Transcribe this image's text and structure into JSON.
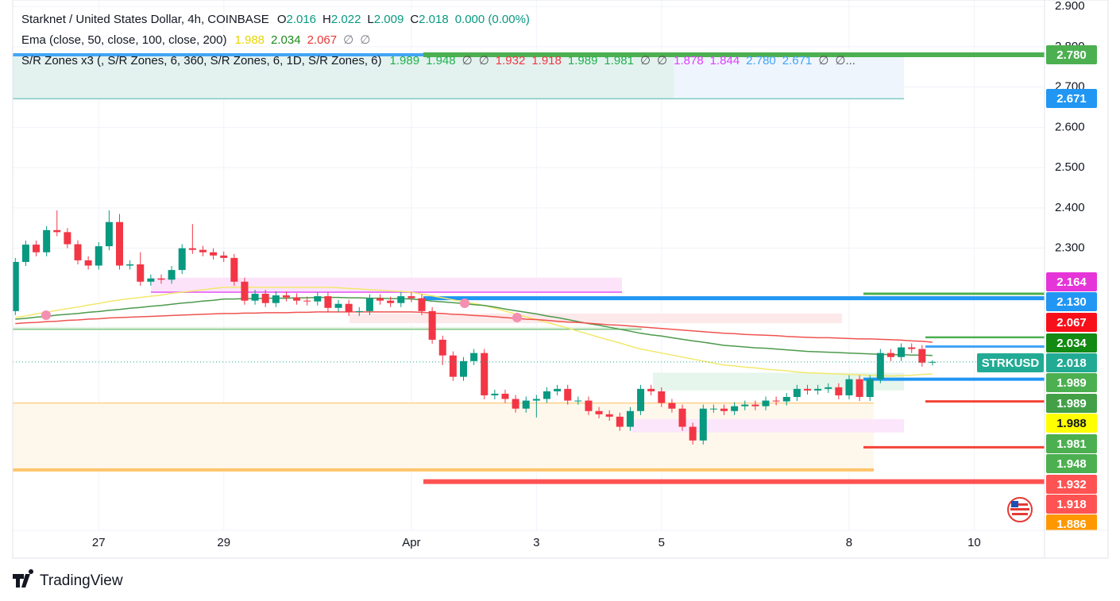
{
  "chart_data": {
    "type": "candlestick",
    "title": "Starknet / United States Dollar, 4h, COINBASE",
    "legend_ohlc": [
      {
        "name": "O",
        "value": 2.016
      },
      {
        "name": "H",
        "value": 2.022
      },
      {
        "name": "L",
        "value": 2.009
      },
      {
        "name": "C",
        "value": 2.018
      }
    ],
    "change": "0.000 (0.00%)",
    "symbol": "STRKUSD",
    "up_color": "#089981",
    "down_color": "#f23645",
    "grid": true,
    "ylim": [
      1.6,
      2.916
    ],
    "yticks": [
      {
        "value": 2.9,
        "label": "2.900"
      },
      {
        "value": 2.8,
        "label": "2.800"
      },
      {
        "value": 2.7,
        "label": "2.700"
      },
      {
        "value": 2.6,
        "label": "2.600"
      },
      {
        "value": 2.5,
        "label": "2.500"
      },
      {
        "value": 2.4,
        "label": "2.400"
      },
      {
        "value": 2.3,
        "label": "2.300"
      }
    ],
    "categories": [
      null,
      null,
      null,
      null,
      null,
      null,
      null,
      null,
      "27",
      null,
      null,
      null,
      null,
      null,
      null,
      null,
      null,
      null,
      null,
      null,
      "29",
      null,
      null,
      null,
      null,
      null,
      null,
      null,
      null,
      null,
      null,
      null,
      null,
      null,
      null,
      null,
      null,
      null,
      "Apr",
      null,
      null,
      null,
      null,
      null,
      null,
      null,
      null,
      null,
      null,
      null,
      "3",
      null,
      null,
      null,
      null,
      null,
      null,
      null,
      null,
      null,
      null,
      null,
      "5",
      null,
      null,
      null,
      null,
      null,
      null,
      null,
      null,
      null,
      null,
      null,
      null,
      null,
      null,
      null,
      null,
      null,
      "8",
      null,
      null,
      null,
      null,
      null,
      null,
      null,
      null,
      null,
      null,
      null,
      "10",
      null,
      null,
      null,
      null,
      null,
      null
    ],
    "open": [
      2.144,
      2.266,
      2.309,
      2.29,
      2.345,
      2.34,
      2.31,
      2.27,
      2.257,
      2.305,
      2.365,
      2.257,
      2.26,
      2.217,
      2.225,
      2.222,
      2.246,
      2.3,
      2.296,
      2.29,
      2.282,
      2.276,
      2.217,
      2.17,
      2.187,
      2.164,
      2.183,
      2.178,
      2.17,
      2.168,
      2.181,
      2.152,
      2.162,
      2.142,
      2.144,
      2.176,
      2.17,
      2.164,
      2.181,
      2.176,
      2.144,
      2.073,
      2.034,
      1.981,
      2.02,
      2.04,
      1.935,
      1.939,
      1.926,
      1.902,
      1.922,
      1.926,
      1.945,
      1.951,
      1.922,
      1.922,
      1.896,
      1.888,
      1.882,
      1.857,
      1.896,
      1.951,
      1.945,
      1.916,
      1.902,
      1.857,
      1.823,
      1.902,
      1.902,
      1.896,
      1.908,
      1.912,
      1.908,
      1.922,
      1.92,
      1.931,
      1.951,
      1.947,
      1.951,
      1.955,
      1.935,
      1.975,
      1.931,
      1.975,
      2.04,
      2.03,
      2.054,
      2.05,
      2.016,
      null,
      null,
      null,
      null,
      null,
      null,
      null,
      null,
      null,
      null
    ],
    "high": [
      2.276,
      2.319,
      2.319,
      2.355,
      2.394,
      2.35,
      2.32,
      2.28,
      2.315,
      2.394,
      2.385,
      2.27,
      2.29,
      2.235,
      2.235,
      2.256,
      2.31,
      2.36,
      2.306,
      2.3,
      2.292,
      2.286,
      2.227,
      2.197,
      2.197,
      2.193,
      2.193,
      2.188,
      2.18,
      2.191,
      2.191,
      2.172,
      2.172,
      2.154,
      2.186,
      2.186,
      2.18,
      2.191,
      2.191,
      2.186,
      2.154,
      2.083,
      2.044,
      2.03,
      2.05,
      2.05,
      1.949,
      1.949,
      1.936,
      1.932,
      1.936,
      1.955,
      1.961,
      1.961,
      1.932,
      1.932,
      1.906,
      1.898,
      1.892,
      1.906,
      1.961,
      1.961,
      1.955,
      1.926,
      1.912,
      1.867,
      1.912,
      1.912,
      1.912,
      1.918,
      1.922,
      1.922,
      1.932,
      1.932,
      1.941,
      1.961,
      1.961,
      1.961,
      1.965,
      1.965,
      1.985,
      1.985,
      1.985,
      2.05,
      2.05,
      2.064,
      2.064,
      2.06,
      2.022,
      null,
      null,
      null,
      null,
      null,
      null,
      null,
      null,
      null,
      null
    ],
    "low": [
      2.134,
      2.256,
      2.28,
      2.28,
      2.33,
      2.3,
      2.26,
      2.247,
      2.247,
      2.295,
      2.247,
      2.247,
      2.207,
      2.207,
      2.212,
      2.212,
      2.236,
      2.286,
      2.28,
      2.272,
      2.266,
      2.207,
      2.16,
      2.16,
      2.154,
      2.154,
      2.168,
      2.16,
      2.158,
      2.158,
      2.142,
      2.142,
      2.132,
      2.132,
      2.134,
      2.16,
      2.154,
      2.154,
      2.166,
      2.134,
      2.063,
      2.01,
      1.971,
      1.971,
      2.01,
      1.925,
      1.925,
      1.916,
      1.892,
      1.892,
      1.88,
      1.916,
      1.935,
      1.912,
      1.912,
      1.886,
      1.878,
      1.872,
      1.847,
      1.847,
      1.886,
      1.935,
      1.906,
      1.892,
      1.847,
      1.813,
      1.813,
      1.892,
      1.886,
      1.886,
      1.898,
      1.898,
      1.898,
      1.91,
      1.91,
      1.921,
      1.937,
      1.937,
      1.941,
      1.925,
      1.925,
      1.921,
      1.921,
      1.965,
      2.02,
      2.02,
      2.04,
      2.006,
      2.009,
      null,
      null,
      null,
      null,
      null,
      null,
      null,
      null,
      null,
      null
    ],
    "close": [
      2.266,
      2.309,
      2.29,
      2.345,
      2.34,
      2.31,
      2.27,
      2.257,
      2.305,
      2.365,
      2.257,
      2.26,
      2.217,
      2.225,
      2.222,
      2.246,
      2.3,
      2.296,
      2.29,
      2.282,
      2.276,
      2.217,
      2.17,
      2.187,
      2.164,
      2.183,
      2.178,
      2.17,
      2.168,
      2.181,
      2.152,
      2.162,
      2.142,
      2.144,
      2.176,
      2.17,
      2.164,
      2.181,
      2.176,
      2.144,
      2.073,
      2.034,
      1.981,
      2.02,
      2.04,
      1.935,
      1.939,
      1.926,
      1.902,
      1.922,
      1.926,
      1.945,
      1.951,
      1.922,
      1.922,
      1.896,
      1.888,
      1.882,
      1.857,
      1.896,
      1.951,
      1.945,
      1.916,
      1.902,
      1.857,
      1.823,
      1.902,
      1.902,
      1.896,
      1.908,
      1.912,
      1.908,
      1.922,
      1.92,
      1.931,
      1.951,
      1.947,
      1.951,
      1.955,
      1.935,
      1.975,
      1.931,
      1.975,
      2.04,
      2.03,
      2.054,
      2.05,
      2.016,
      2.018,
      null,
      null,
      null,
      null,
      null,
      null,
      null,
      null,
      null,
      null
    ],
    "ema": {
      "name": "Ema (close, 50, close, 100, close, 200)",
      "legend_values": [
        1.988,
        2.034,
        2.067,
        null,
        null
      ],
      "legend_labels": [
        "1.988",
        "2.034",
        "2.067",
        "∅",
        "∅"
      ],
      "legend_colors": [
        "#e8d500",
        "#1b8a1b",
        "#e53935",
        "#787b86",
        "#787b86"
      ],
      "series": [
        {
          "color": "#f2e86d",
          "values": [
            2.128,
            2.132,
            2.137,
            2.141,
            2.146,
            2.15,
            2.154,
            2.159,
            2.163,
            2.168,
            2.172,
            2.175,
            2.178,
            2.181,
            2.184,
            2.188,
            2.191,
            2.194,
            2.197,
            2.2,
            2.203,
            2.203,
            2.203,
            2.203,
            2.203,
            2.203,
            2.203,
            2.203,
            2.203,
            2.203,
            2.203,
            2.202,
            2.2,
            2.199,
            2.197,
            2.196,
            2.194,
            2.193,
            2.191,
            2.186,
            2.182,
            2.177,
            2.172,
            2.167,
            2.163,
            2.158,
            2.151,
            2.144,
            2.137,
            2.13,
            2.123,
            2.116,
            2.109,
            2.102,
            2.094,
            2.087,
            2.079,
            2.072,
            2.065,
            2.057,
            2.05,
            2.045,
            2.04,
            2.035,
            2.03,
            2.025,
            2.02,
            2.015,
            2.01,
            2.008,
            2.005,
            2.003,
            2.0,
            1.998,
            1.996,
            1.993,
            1.991,
            1.99,
            1.989,
            1.988,
            1.987,
            1.986,
            1.985,
            1.984,
            1.983,
            1.984,
            1.985,
            1.987,
            1.988,
            null,
            null,
            null,
            null,
            null,
            null,
            null,
            null,
            null,
            null
          ]
        },
        {
          "color": "#4c9a4c",
          "values": [
            2.124,
            2.126,
            2.129,
            2.131,
            2.134,
            2.136,
            2.138,
            2.141,
            2.143,
            2.146,
            2.148,
            2.151,
            2.153,
            2.156,
            2.158,
            2.161,
            2.164,
            2.166,
            2.169,
            2.171,
            2.174,
            2.174,
            2.175,
            2.175,
            2.176,
            2.176,
            2.176,
            2.177,
            2.177,
            2.178,
            2.178,
            2.178,
            2.177,
            2.177,
            2.176,
            2.176,
            2.175,
            2.175,
            2.174,
            2.172,
            2.169,
            2.167,
            2.165,
            2.163,
            2.16,
            2.158,
            2.154,
            2.149,
            2.145,
            2.141,
            2.137,
            2.132,
            2.128,
            2.123,
            2.118,
            2.113,
            2.109,
            2.104,
            2.099,
            2.094,
            2.089,
            2.085,
            2.082,
            2.078,
            2.074,
            2.07,
            2.067,
            2.063,
            2.059,
            2.057,
            2.055,
            2.053,
            2.052,
            2.05,
            2.048,
            2.046,
            2.044,
            2.043,
            2.042,
            2.041,
            2.04,
            2.039,
            2.038,
            2.037,
            2.036,
            2.036,
            2.035,
            2.035,
            2.034,
            null,
            null,
            null,
            null,
            null,
            null,
            null,
            null,
            null,
            null
          ]
        },
        {
          "color": "#ef5350",
          "values": [
            2.113,
            2.115,
            2.116,
            2.118,
            2.119,
            2.121,
            2.122,
            2.124,
            2.125,
            2.127,
            2.128,
            2.129,
            2.13,
            2.131,
            2.132,
            2.133,
            2.134,
            2.135,
            2.136,
            2.137,
            2.138,
            2.138,
            2.139,
            2.139,
            2.14,
            2.14,
            2.14,
            2.141,
            2.141,
            2.142,
            2.142,
            2.142,
            2.142,
            2.142,
            2.142,
            2.142,
            2.142,
            2.142,
            2.142,
            2.141,
            2.139,
            2.138,
            2.136,
            2.135,
            2.133,
            2.132,
            2.13,
            2.128,
            2.126,
            2.124,
            2.123,
            2.121,
            2.119,
            2.117,
            2.116,
            2.114,
            2.112,
            2.11,
            2.109,
            2.107,
            2.105,
            2.103,
            2.101,
            2.099,
            2.097,
            2.095,
            2.093,
            2.091,
            2.089,
            2.088,
            2.086,
            2.085,
            2.084,
            2.083,
            2.081,
            2.08,
            2.079,
            2.078,
            2.078,
            2.077,
            2.076,
            2.075,
            2.075,
            2.074,
            2.073,
            2.072,
            2.07,
            2.069,
            2.067,
            null,
            null,
            null,
            null,
            null,
            null,
            null,
            null,
            null,
            null
          ]
        }
      ]
    },
    "sr_zones": {
      "name": "S/R Zones x3 (, S/R Zones, 6, 360, S/R Zones, 6, 1D, S/R Zones, 6)",
      "legend_values": [
        1.989,
        1.948,
        null,
        null,
        1.932,
        1.918,
        1.989,
        1.981,
        null,
        null,
        1.878,
        1.844,
        2.78,
        2.671,
        null,
        null
      ],
      "legend_labels": [
        "1.989",
        "1.948",
        "∅",
        "∅",
        "1.932",
        "1.918",
        "1.989",
        "1.981",
        "∅",
        "∅",
        "1.878",
        "1.844",
        "2.780",
        "2.671",
        "∅",
        "∅..."
      ],
      "legend_colors": [
        "#22b14c",
        "#22b14c",
        "#555555",
        "#555555",
        "#f23645",
        "#f23645",
        "#22b14c",
        "#22b14c",
        "#555555",
        "#555555",
        "#e040fb",
        "#e040fb",
        "#42a5f5",
        "#42a5f5",
        "#555555",
        "#555555"
      ],
      "zones": [
        {
          "top": 2.78,
          "bottom": 2.671,
          "color": "#e3f2ef"
        },
        {
          "top": 2.78,
          "bottom": 2.671,
          "color": "#eef5fd"
        },
        {
          "top": 2.227,
          "bottom": 2.191,
          "color": "#fce3fa"
        },
        {
          "top": 2.138,
          "bottom": 2.114,
          "color": "#fde9ea"
        },
        {
          "top": 2.105,
          "bottom": 2.099,
          "color": "#e6f4e8"
        },
        {
          "top": 1.916,
          "bottom": 1.75,
          "color": "#fef8ec"
        },
        {
          "top": 1.991,
          "bottom": 1.947,
          "color": "#e6f6ec"
        },
        {
          "top": 1.876,
          "bottom": 1.843,
          "color": "#fce6fb"
        }
      ],
      "levels": [
        {
          "value": 2.78,
          "color": "#42a5f5"
        },
        {
          "value": 2.78,
          "color": "#4caf50"
        },
        {
          "value": 2.671,
          "color": "#80cbc4"
        },
        {
          "value": 2.176,
          "color": "#2196f3"
        },
        {
          "value": 2.187,
          "color": "#4caf50"
        },
        {
          "value": 2.079,
          "color": "#4caf50"
        },
        {
          "value": 2.056,
          "color": "#42a5f5"
        },
        {
          "value": 1.975,
          "color": "#2196f3"
        },
        {
          "value": 1.92,
          "color": "#f44336"
        },
        {
          "value": 1.806,
          "color": "#f44336"
        },
        {
          "value": 1.75,
          "color": "#ffc46b"
        },
        {
          "value": 1.721,
          "color": "#ff5252"
        },
        {
          "value": 1.916,
          "color": "#ffd08a"
        },
        {
          "value": 2.191,
          "color": "#e879f9"
        },
        {
          "value": 2.099,
          "color": "#81c784"
        }
      ]
    },
    "price_labels": {
      "values": [
        2.78,
        2.671,
        2.164,
        2.13,
        2.067,
        2.034,
        2.018,
        1.989,
        1.989,
        1.988,
        1.981,
        1.948,
        1.932,
        1.918,
        1.886
      ],
      "value_labels": [
        "2.780",
        "2.671",
        "2.164",
        "2.130",
        "2.067",
        "2.034",
        "2.018",
        "1.989",
        "1.989",
        "1.988",
        "1.981",
        "1.948",
        "1.932",
        "1.918",
        "1.886"
      ],
      "colors": [
        "#4caf50",
        "#2196f3",
        "#e535d8",
        "#2196f3",
        "#f7101a",
        "#138a13",
        "#22ab94",
        "#4caf50",
        "#43a047",
        "#ffff00",
        "#4caf50",
        "#4caf50",
        "#ff5252",
        "#ff5252",
        "#ff9800"
      ]
    }
  },
  "footer": {
    "brand": "TradingView"
  }
}
